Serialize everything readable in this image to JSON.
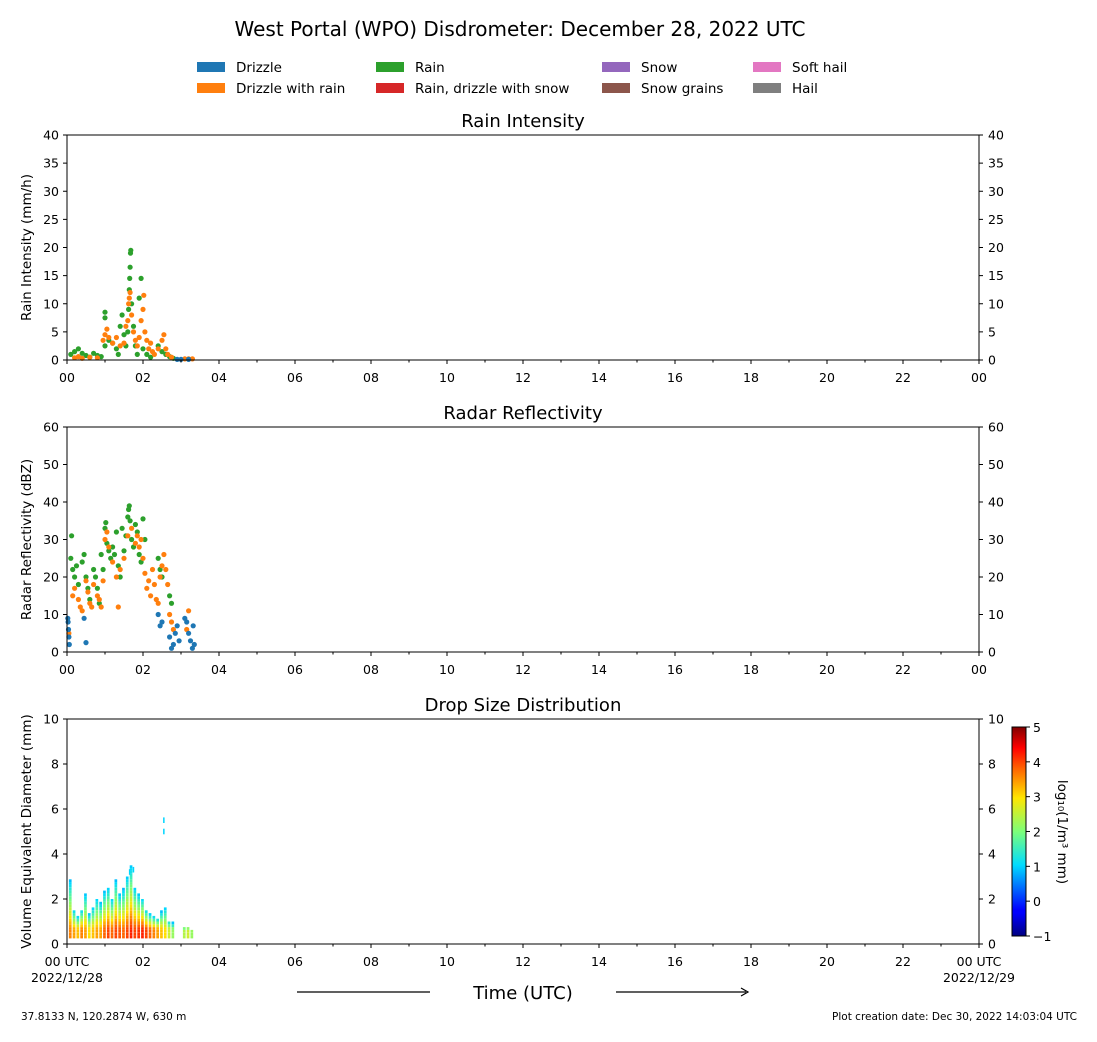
{
  "title": "West Portal (WPO) Disdrometer: December 28, 2022 UTC",
  "legend": [
    {
      "label": "Drizzle",
      "color": "#1f77b4"
    },
    {
      "label": "Drizzle with rain",
      "color": "#ff7f0e"
    },
    {
      "label": "Rain",
      "color": "#2ca02c"
    },
    {
      "label": "Rain, drizzle with snow",
      "color": "#d62728"
    },
    {
      "label": "Snow",
      "color": "#9467bd"
    },
    {
      "label": "Snow grains",
      "color": "#8c564b"
    },
    {
      "label": "Soft hail",
      "color": "#e377c2"
    },
    {
      "label": "Hail",
      "color": "#7f7f7f"
    }
  ],
  "xaxis": {
    "label": "Time (UTC)",
    "tick_labels": [
      "00",
      "02",
      "04",
      "06",
      "08",
      "10",
      "12",
      "14",
      "16",
      "18",
      "20",
      "22",
      "00"
    ],
    "bottom_tick_labels": [
      "00 UTC",
      "02",
      "04",
      "06",
      "08",
      "10",
      "12",
      "14",
      "16",
      "18",
      "20",
      "22",
      "00 UTC"
    ],
    "start_date": "2022/12/28",
    "end_date": "2022/12/29"
  },
  "footer": {
    "location": "37.8133 N, 120.2874 W, 630 m",
    "creation": "Plot creation date: Dec 30, 2022 14:03:04 UTC"
  },
  "chart_data": [
    {
      "type": "scatter",
      "title": "Rain Intensity",
      "ylabel": "Rain Intensity (mm/h)",
      "xlim": [
        0,
        24
      ],
      "ylim": [
        0,
        40
      ],
      "yticks": [
        0,
        5,
        10,
        15,
        20,
        25,
        30,
        35,
        40
      ],
      "grid": false,
      "series": [
        {
          "name": "Rain",
          "color": "#2ca02c",
          "points": [
            [
              0.1,
              1.0
            ],
            [
              0.2,
              1.5
            ],
            [
              0.3,
              2.0
            ],
            [
              0.4,
              1.2
            ],
            [
              0.5,
              0.8
            ],
            [
              0.6,
              0.5
            ],
            [
              0.7,
              1.2
            ],
            [
              0.8,
              0.8
            ],
            [
              0.9,
              0.6
            ],
            [
              1.0,
              2.5
            ],
            [
              1.0,
              7.5
            ],
            [
              1.0,
              8.5
            ],
            [
              1.1,
              3.5
            ],
            [
              1.2,
              3.0
            ],
            [
              1.3,
              2.0
            ],
            [
              1.35,
              1.0
            ],
            [
              1.4,
              6.0
            ],
            [
              1.45,
              8.0
            ],
            [
              1.5,
              4.5
            ],
            [
              1.55,
              2.5
            ],
            [
              1.6,
              5.0
            ],
            [
              1.62,
              9.0
            ],
            [
              1.64,
              12.5
            ],
            [
              1.65,
              14.5
            ],
            [
              1.66,
              16.5
            ],
            [
              1.67,
              19.0
            ],
            [
              1.68,
              19.5
            ],
            [
              1.7,
              10.0
            ],
            [
              1.75,
              6.0
            ],
            [
              1.8,
              2.5
            ],
            [
              1.85,
              1.0
            ],
            [
              1.9,
              11.0
            ],
            [
              1.95,
              14.5
            ],
            [
              2.0,
              2.0
            ],
            [
              2.1,
              1.0
            ],
            [
              2.2,
              0.5
            ],
            [
              2.4,
              2.5
            ],
            [
              2.5,
              1.5
            ],
            [
              2.6,
              1.0
            ],
            [
              2.7,
              0.6
            ],
            [
              2.8,
              0.3
            ]
          ]
        },
        {
          "name": "Drizzle with rain",
          "color": "#ff7f0e",
          "points": [
            [
              0.2,
              0.4
            ],
            [
              0.3,
              0.6
            ],
            [
              0.4,
              0.3
            ],
            [
              0.6,
              0.5
            ],
            [
              0.8,
              0.4
            ],
            [
              0.95,
              3.5
            ],
            [
              1.0,
              4.5
            ],
            [
              1.05,
              5.5
            ],
            [
              1.1,
              4.0
            ],
            [
              1.2,
              3.0
            ],
            [
              1.3,
              4.0
            ],
            [
              1.4,
              2.5
            ],
            [
              1.5,
              3.0
            ],
            [
              1.55,
              6.0
            ],
            [
              1.6,
              7.0
            ],
            [
              1.62,
              10.0
            ],
            [
              1.64,
              11.0
            ],
            [
              1.66,
              12.0
            ],
            [
              1.7,
              8.0
            ],
            [
              1.75,
              5.0
            ],
            [
              1.8,
              3.5
            ],
            [
              1.85,
              2.5
            ],
            [
              1.9,
              4.0
            ],
            [
              1.95,
              7.0
            ],
            [
              2.0,
              9.0
            ],
            [
              2.02,
              11.5
            ],
            [
              2.05,
              5.0
            ],
            [
              2.1,
              3.5
            ],
            [
              2.15,
              2.0
            ],
            [
              2.2,
              3.0
            ],
            [
              2.25,
              1.5
            ],
            [
              2.3,
              1.0
            ],
            [
              2.4,
              2.0
            ],
            [
              2.5,
              3.5
            ],
            [
              2.55,
              4.5
            ],
            [
              2.6,
              2.0
            ],
            [
              2.65,
              1.0
            ],
            [
              2.75,
              0.5
            ],
            [
              3.1,
              0.2
            ],
            [
              3.2,
              0.2
            ],
            [
              3.3,
              0.2
            ]
          ]
        },
        {
          "name": "Drizzle",
          "color": "#1f77b4",
          "points": [
            [
              2.9,
              0.1
            ],
            [
              3.0,
              0.1
            ],
            [
              3.2,
              0.1
            ]
          ]
        }
      ]
    },
    {
      "type": "scatter",
      "title": "Radar Reflectivity",
      "ylabel": "Radar Reflectivity (dBZ)",
      "xlim": [
        0,
        24
      ],
      "ylim": [
        0,
        60
      ],
      "yticks": [
        0,
        10,
        20,
        30,
        40,
        50,
        60
      ],
      "grid": false,
      "series": [
        {
          "name": "Rain",
          "color": "#2ca02c",
          "points": [
            [
              0.1,
              25
            ],
            [
              0.12,
              31
            ],
            [
              0.15,
              22
            ],
            [
              0.2,
              20
            ],
            [
              0.25,
              23
            ],
            [
              0.3,
              18
            ],
            [
              0.4,
              24
            ],
            [
              0.45,
              26
            ],
            [
              0.5,
              20
            ],
            [
              0.55,
              17
            ],
            [
              0.6,
              14
            ],
            [
              0.7,
              22
            ],
            [
              0.75,
              20
            ],
            [
              0.8,
              17
            ],
            [
              0.85,
              13
            ],
            [
              0.9,
              26
            ],
            [
              0.95,
              22
            ],
            [
              1.0,
              33
            ],
            [
              1.02,
              34.5
            ],
            [
              1.05,
              29
            ],
            [
              1.1,
              27
            ],
            [
              1.15,
              25
            ],
            [
              1.2,
              28
            ],
            [
              1.25,
              26
            ],
            [
              1.3,
              32
            ],
            [
              1.35,
              23
            ],
            [
              1.4,
              20
            ],
            [
              1.45,
              33
            ],
            [
              1.5,
              27
            ],
            [
              1.55,
              31
            ],
            [
              1.6,
              36
            ],
            [
              1.62,
              38
            ],
            [
              1.64,
              39
            ],
            [
              1.66,
              35
            ],
            [
              1.7,
              30
            ],
            [
              1.75,
              28
            ],
            [
              1.8,
              34
            ],
            [
              1.85,
              32
            ],
            [
              1.9,
              26
            ],
            [
              1.95,
              24
            ],
            [
              2.0,
              35.5
            ],
            [
              2.05,
              30
            ],
            [
              2.4,
              25
            ],
            [
              2.45,
              22
            ],
            [
              2.5,
              20
            ],
            [
              2.7,
              15
            ],
            [
              2.75,
              13
            ]
          ]
        },
        {
          "name": "Drizzle with rain",
          "color": "#ff7f0e",
          "points": [
            [
              0.05,
              5
            ],
            [
              0.15,
              15
            ],
            [
              0.2,
              17
            ],
            [
              0.3,
              14
            ],
            [
              0.35,
              12
            ],
            [
              0.4,
              11
            ],
            [
              0.5,
              19
            ],
            [
              0.55,
              16
            ],
            [
              0.6,
              13
            ],
            [
              0.65,
              12
            ],
            [
              0.7,
              18
            ],
            [
              0.8,
              15
            ],
            [
              0.85,
              14
            ],
            [
              0.9,
              12
            ],
            [
              0.95,
              19
            ],
            [
              1.0,
              30
            ],
            [
              1.05,
              32
            ],
            [
              1.1,
              28
            ],
            [
              1.2,
              24
            ],
            [
              1.3,
              20
            ],
            [
              1.35,
              12
            ],
            [
              1.4,
              22
            ],
            [
              1.5,
              25
            ],
            [
              1.6,
              31
            ],
            [
              1.7,
              33
            ],
            [
              1.8,
              29
            ],
            [
              1.85,
              31
            ],
            [
              1.9,
              28
            ],
            [
              1.95,
              30
            ],
            [
              2.0,
              25
            ],
            [
              2.05,
              21
            ],
            [
              2.1,
              17
            ],
            [
              2.15,
              19
            ],
            [
              2.2,
              15
            ],
            [
              2.25,
              22
            ],
            [
              2.3,
              18
            ],
            [
              2.35,
              14
            ],
            [
              2.4,
              13
            ],
            [
              2.45,
              20
            ],
            [
              2.5,
              23
            ],
            [
              2.55,
              26
            ],
            [
              2.6,
              22
            ],
            [
              2.65,
              18
            ],
            [
              2.7,
              10
            ],
            [
              2.75,
              8
            ],
            [
              2.8,
              6
            ],
            [
              3.15,
              6
            ],
            [
              3.2,
              11
            ]
          ]
        },
        {
          "name": "Drizzle",
          "color": "#1f77b4",
          "points": [
            [
              0.02,
              9
            ],
            [
              0.03,
              8
            ],
            [
              0.04,
              6
            ],
            [
              0.05,
              4
            ],
            [
              0.06,
              2
            ],
            [
              0.45,
              9
            ],
            [
              0.5,
              2.5
            ],
            [
              2.4,
              10
            ],
            [
              2.45,
              7
            ],
            [
              2.5,
              8
            ],
            [
              2.7,
              4
            ],
            [
              2.75,
              1
            ],
            [
              2.8,
              2
            ],
            [
              2.85,
              5
            ],
            [
              2.9,
              7
            ],
            [
              2.95,
              3
            ],
            [
              3.1,
              9
            ],
            [
              3.15,
              8
            ],
            [
              3.2,
              5
            ],
            [
              3.25,
              3
            ],
            [
              3.3,
              1
            ],
            [
              3.32,
              7
            ],
            [
              3.35,
              2
            ]
          ]
        }
      ]
    },
    {
      "type": "heatmap",
      "title": "Drop Size Distribution",
      "ylabel": "Volume Equivalent Diameter (mm)",
      "xlim": [
        0,
        24
      ],
      "ylim": [
        0,
        10
      ],
      "yticks": [
        0,
        2,
        4,
        6,
        8,
        10
      ],
      "colorbar": {
        "label": "log₁₀(1/m³ mm)",
        "min": -1,
        "max": 5,
        "ticks": [
          -1,
          0,
          1,
          2,
          3,
          4,
          5
        ]
      },
      "profile": [
        {
          "t": 0.1,
          "top": 2.8,
          "peak": 3.6
        },
        {
          "t": 0.2,
          "top": 1.5,
          "peak": 3.4
        },
        {
          "t": 0.3,
          "top": 1.2,
          "peak": 3.2
        },
        {
          "t": 0.4,
          "top": 1.5,
          "peak": 3.6
        },
        {
          "t": 0.5,
          "top": 2.2,
          "peak": 3.4
        },
        {
          "t": 0.6,
          "top": 1.3,
          "peak": 3.0
        },
        {
          "t": 0.7,
          "top": 1.6,
          "peak": 3.2
        },
        {
          "t": 0.8,
          "top": 2.0,
          "peak": 3.4
        },
        {
          "t": 0.9,
          "top": 1.8,
          "peak": 3.4
        },
        {
          "t": 1.0,
          "top": 2.3,
          "peak": 3.8
        },
        {
          "t": 1.1,
          "top": 2.5,
          "peak": 4.0
        },
        {
          "t": 1.2,
          "top": 2.0,
          "peak": 3.8
        },
        {
          "t": 1.3,
          "top": 2.8,
          "peak": 4.0
        },
        {
          "t": 1.4,
          "top": 2.2,
          "peak": 3.9
        },
        {
          "t": 1.5,
          "top": 2.4,
          "peak": 3.8
        },
        {
          "t": 1.6,
          "top": 3.0,
          "peak": 4.0
        },
        {
          "t": 1.7,
          "top": 3.5,
          "peak": 4.2
        },
        {
          "t": 1.8,
          "top": 2.5,
          "peak": 4.0
        },
        {
          "t": 1.9,
          "top": 2.2,
          "peak": 4.1
        },
        {
          "t": 2.0,
          "top": 2.0,
          "peak": 4.2
        },
        {
          "t": 2.1,
          "top": 1.5,
          "peak": 4.0
        },
        {
          "t": 2.2,
          "top": 1.3,
          "peak": 3.8
        },
        {
          "t": 2.3,
          "top": 1.2,
          "peak": 3.6
        },
        {
          "t": 2.4,
          "top": 1.1,
          "peak": 3.4
        },
        {
          "t": 2.5,
          "top": 1.4,
          "peak": 3.2
        },
        {
          "t": 2.6,
          "top": 1.6,
          "peak": 3.0
        },
        {
          "t": 2.7,
          "top": 1.0,
          "peak": 2.6
        },
        {
          "t": 2.8,
          "top": 0.9,
          "peak": 2.2
        },
        {
          "t": 3.1,
          "top": 0.7,
          "peak": 2.4
        },
        {
          "t": 3.2,
          "top": 0.7,
          "peak": 2.6
        },
        {
          "t": 3.3,
          "top": 0.6,
          "peak": 2.2
        }
      ],
      "isolated": [
        {
          "t": 2.55,
          "d": 5.5,
          "v": 1.0
        },
        {
          "t": 2.55,
          "d": 5.0,
          "v": 1.0
        },
        {
          "t": 1.65,
          "d": 3.2,
          "v": 1.0
        },
        {
          "t": 1.75,
          "d": 3.3,
          "v": 1.0
        }
      ]
    }
  ]
}
